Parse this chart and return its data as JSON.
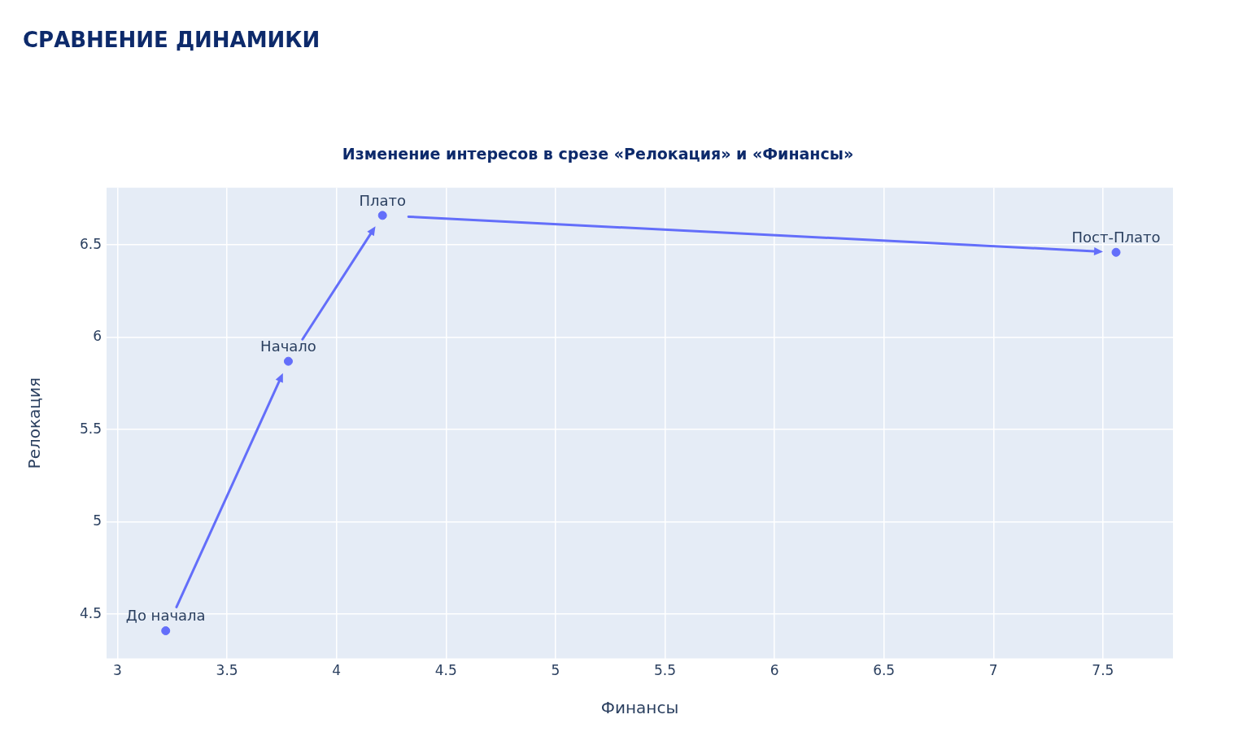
{
  "chart_data": {
    "type": "scatter",
    "title": "СРАВНЕНИЕ ДИНАМИКИ",
    "subtitle": "Изменение интересов в срезе «Релокация» и «Финансы»",
    "xlabel": "Финансы",
    "ylabel": "Релокация",
    "x": [
      3.22,
      3.78,
      4.21,
      7.56
    ],
    "values": [
      4.41,
      5.87,
      6.66,
      6.46
    ],
    "color": "#636efa",
    "xlim": [
      2.95,
      7.82
    ],
    "ylim": [
      4.26,
      6.81
    ],
    "xticks": [
      3,
      3.5,
      4,
      4.5,
      5,
      5.5,
      6,
      6.5,
      7,
      7.5
    ],
    "yticks": [
      4.5,
      5,
      5.5,
      6,
      6.5
    ],
    "grid": true,
    "legend": false,
    "marker": "circle",
    "annotations": [
      {
        "text": "До начала",
        "x": 3.22,
        "y": 4.41
      },
      {
        "text": "Начало",
        "x": 3.78,
        "y": 5.87
      },
      {
        "text": "Плато",
        "x": 4.21,
        "y": 6.66
      },
      {
        "text": "Пост-Плато",
        "x": 7.56,
        "y": 6.46
      }
    ]
  }
}
